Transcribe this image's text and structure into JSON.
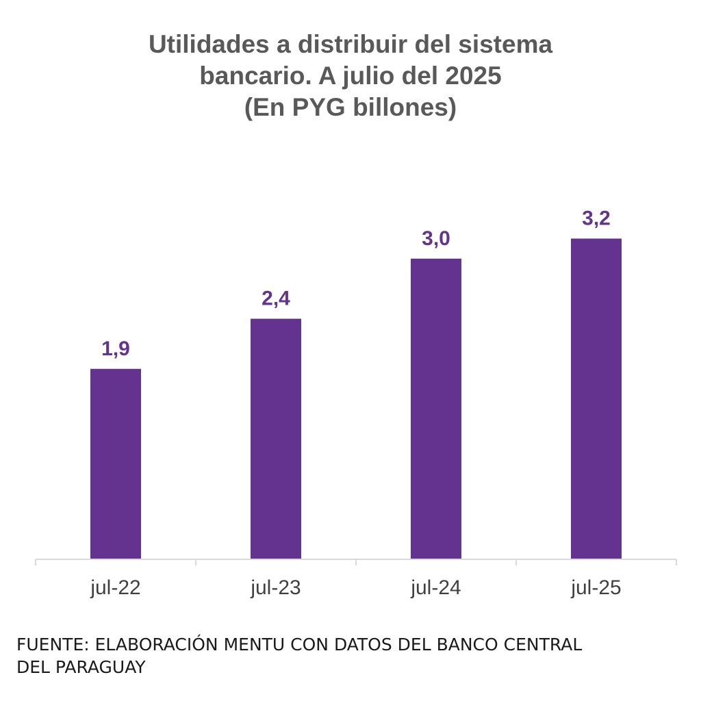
{
  "chart_data": {
    "type": "bar",
    "title_lines": [
      "Utilidades a distribuir del sistema",
      "bancario. A julio del 2025",
      "(En PYG billones)"
    ],
    "categories": [
      "jul-22",
      "jul-23",
      "jul-24",
      "jul-25"
    ],
    "values": [
      1.9,
      2.4,
      3.0,
      3.2
    ],
    "value_labels": [
      "1,9",
      "2,4",
      "3,0",
      "3,2"
    ],
    "xlabel": "",
    "ylabel": "",
    "ylim": [
      0,
      3.5
    ],
    "grid": false,
    "legend": "none",
    "bar_color": "#63338f",
    "label_color": "#63338f",
    "axis_color": "#d9d9d9",
    "tick_label_color": "#404040"
  },
  "footer": {
    "source_lines": [
      "FUENTE: ELABORACIÓN MENTU CON DATOS DEL BANCO CENTRAL",
      "DEL PARAGUAY"
    ]
  }
}
